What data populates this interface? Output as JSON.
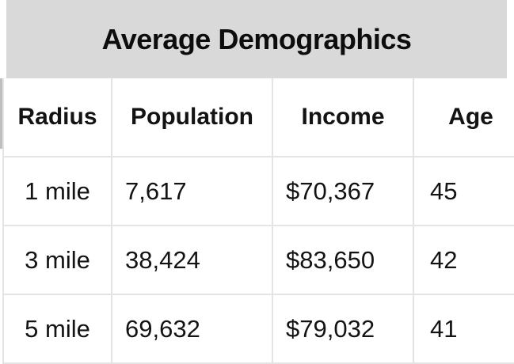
{
  "title": "Average Demographics",
  "chart_data": {
    "type": "table",
    "title": "Average Demographics",
    "columns": [
      "Radius",
      "Population",
      "Income",
      "Age"
    ],
    "rows": [
      [
        "1 mile",
        "7,617",
        "$70,367",
        "45"
      ],
      [
        "3 mile",
        "38,424",
        "$83,650",
        "42"
      ],
      [
        "5 mile",
        "69,632",
        "$79,032",
        "41"
      ]
    ],
    "numeric": {
      "radius_miles": [
        1,
        3,
        5
      ],
      "population": [
        7617,
        38424,
        69632
      ],
      "income_usd": [
        70367,
        83650,
        79032
      ],
      "age": [
        45,
        42,
        41
      ]
    }
  },
  "colors": {
    "title_band": "#d9d9d9",
    "grid_line": "#e4e4e4",
    "edge_strip": "#bfbfbf",
    "text": "#131313",
    "background": "#ffffff"
  }
}
